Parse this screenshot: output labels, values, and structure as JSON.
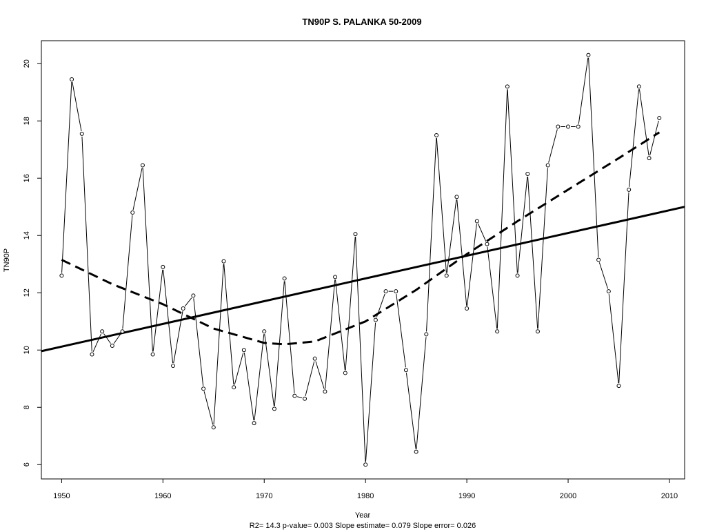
{
  "chart_data": {
    "type": "line",
    "title": "TN90P   S. PALANKA 50-2009",
    "xlabel": "Year",
    "ylabel": "TN90P",
    "xlim": [
      1948,
      2011.5
    ],
    "ylim": [
      5.5,
      20.8
    ],
    "x_ticks": [
      1950,
      1960,
      1970,
      1980,
      1990,
      2000,
      2010
    ],
    "y_ticks": [
      6,
      8,
      10,
      12,
      14,
      16,
      18,
      20
    ],
    "grid": false,
    "series": [
      {
        "style": "line-with-open-points",
        "x": [
          1950,
          1951,
          1952,
          1953,
          1954,
          1955,
          1956,
          1957,
          1958,
          1959,
          1960,
          1961,
          1962,
          1963,
          1964,
          1965,
          1966,
          1967,
          1968,
          1969,
          1970,
          1971,
          1972,
          1973,
          1974,
          1975,
          1976,
          1977,
          1978,
          1979,
          1980,
          1981,
          1982,
          1983,
          1984,
          1985,
          1986,
          1987,
          1988,
          1989,
          1990,
          1991,
          1992,
          1993,
          1994,
          1995,
          1996,
          1997,
          1998,
          1999,
          2000,
          2001,
          2002,
          2003,
          2004,
          2005,
          2006,
          2007,
          2008,
          2009
        ],
        "values": [
          12.6,
          19.45,
          17.55,
          9.85,
          10.65,
          10.15,
          10.65,
          14.8,
          16.45,
          9.85,
          12.9,
          9.45,
          11.45,
          11.9,
          8.65,
          7.3,
          13.1,
          8.7,
          10.0,
          7.45,
          10.65,
          7.95,
          12.5,
          8.4,
          8.3,
          9.7,
          8.55,
          12.55,
          9.2,
          14.05,
          6.0,
          11.05,
          12.05,
          12.05,
          9.3,
          6.45,
          10.55,
          17.5,
          12.6,
          15.35,
          11.45,
          14.5,
          13.7,
          10.65,
          19.2,
          12.6,
          16.15,
          10.65,
          16.45,
          17.8,
          17.8,
          17.8,
          20.3,
          13.15,
          12.05,
          8.75,
          15.6,
          19.2,
          16.7,
          18.1
        ],
        "color": "#000000"
      },
      {
        "style": "solid-thick",
        "trend": "linear",
        "x": [
          1948,
          2011.5
        ],
        "values": [
          9.96,
          15.0
        ],
        "color": "#000000"
      },
      {
        "style": "dashed-thick",
        "trend": "smooth",
        "x": [
          1950,
          1955,
          1960,
          1965,
          1970,
          1972,
          1975,
          1980,
          1985,
          1990,
          1995,
          2000,
          2005,
          2009
        ],
        "values": [
          13.15,
          12.3,
          11.6,
          10.75,
          10.25,
          10.2,
          10.3,
          11.0,
          12.1,
          13.35,
          14.5,
          15.6,
          16.7,
          17.6
        ],
        "color": "#000000"
      }
    ]
  },
  "footer": {
    "stats": "R2= 14.3  p-value= 0.003  Slope estimate= 0.079  Slope error= 0.026"
  }
}
